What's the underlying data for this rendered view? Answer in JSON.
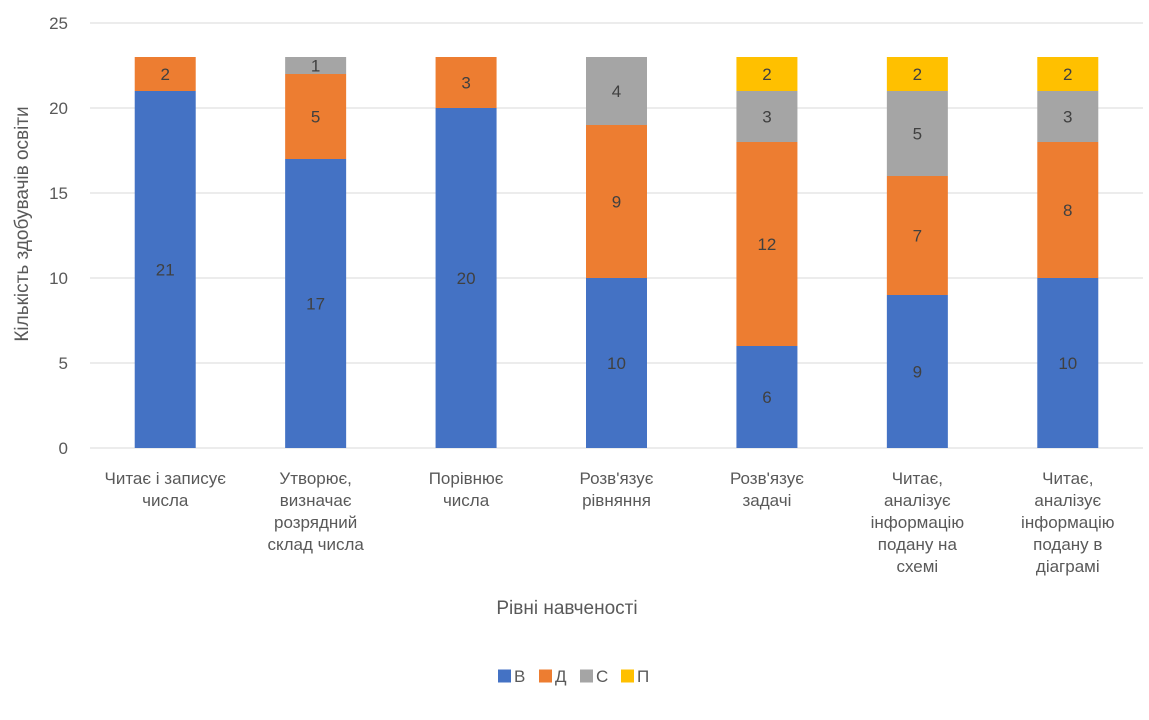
{
  "chart_data": {
    "type": "bar",
    "stacked": true,
    "title": "",
    "xlabel": "Рівні  навченості",
    "ylabel": "Кількість здобувачів освіти",
    "ylim": [
      0,
      25
    ],
    "yticks": [
      0,
      5,
      10,
      15,
      20,
      25
    ],
    "grid": true,
    "legend_position": "bottom",
    "categories": [
      [
        "Читає і записує",
        "числа"
      ],
      [
        "Утворює,",
        "визначає",
        "розрядний",
        "склад числа"
      ],
      [
        "Порівнює",
        "числа"
      ],
      [
        "Розв'язує",
        "рівняння"
      ],
      [
        "Розв'язує",
        "задачі"
      ],
      [
        "Читає,",
        "аналізує",
        "інформацію",
        "подану на",
        "схемі"
      ],
      [
        "Читає,",
        "аналізує",
        "інформацію",
        "подану в",
        "діаграмі"
      ]
    ],
    "series": [
      {
        "name": "В",
        "color": "#4472C4",
        "values": [
          21,
          17,
          20,
          10,
          6,
          9,
          10
        ]
      },
      {
        "name": "Д",
        "color": "#ED7D31",
        "values": [
          2,
          5,
          3,
          9,
          12,
          7,
          8
        ]
      },
      {
        "name": "С",
        "color": "#A5A5A5",
        "values": [
          0,
          1,
          0,
          4,
          3,
          5,
          3
        ]
      },
      {
        "name": "П",
        "color": "#FFC000",
        "values": [
          0,
          0,
          0,
          0,
          2,
          2,
          2
        ]
      }
    ]
  }
}
